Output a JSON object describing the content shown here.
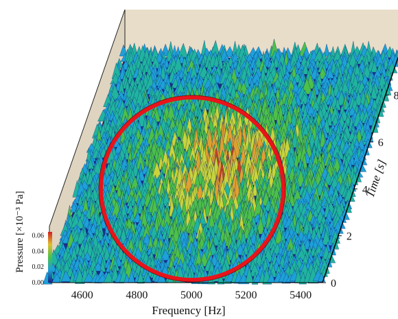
{
  "chart_data": {
    "type": "surface-3d",
    "x": {
      "label": "Frequency [Hz]",
      "ticks": [
        "4600",
        "4800",
        "5000",
        "5200",
        "5400"
      ],
      "tick_values": [
        4600,
        4800,
        5000,
        5200,
        5400
      ],
      "range": [
        4480,
        5480
      ]
    },
    "y": {
      "label": "Time [s]",
      "ticks": [
        "0",
        "2",
        "4",
        "6",
        "8"
      ],
      "tick_values": [
        0,
        2,
        4,
        6,
        8
      ],
      "range": [
        0,
        9.6
      ]
    },
    "z": {
      "label": "Pressure  [×10⁻³ Pa]",
      "colorbar_ticks": [
        "0.00",
        "0.02",
        "0.04",
        "0.06"
      ],
      "colorbar_values": [
        0.0,
        0.02,
        0.04,
        0.06
      ],
      "range": [
        0,
        0.065
      ]
    },
    "colormap": [
      "#1a237e",
      "#1e5fc8",
      "#1ea0d8",
      "#20b4a0",
      "#4cc04a",
      "#c8d43a",
      "#e0a030",
      "#d04020"
    ],
    "annotation": {
      "shape": "circle",
      "color": "#e8141b",
      "center": {
        "frequency": 4990,
        "time": 4.6
      }
    },
    "colors": {
      "back_wall": "#e8ddc8",
      "side_wall": "#dfd4bf",
      "floor": "#1a2d8c"
    }
  }
}
